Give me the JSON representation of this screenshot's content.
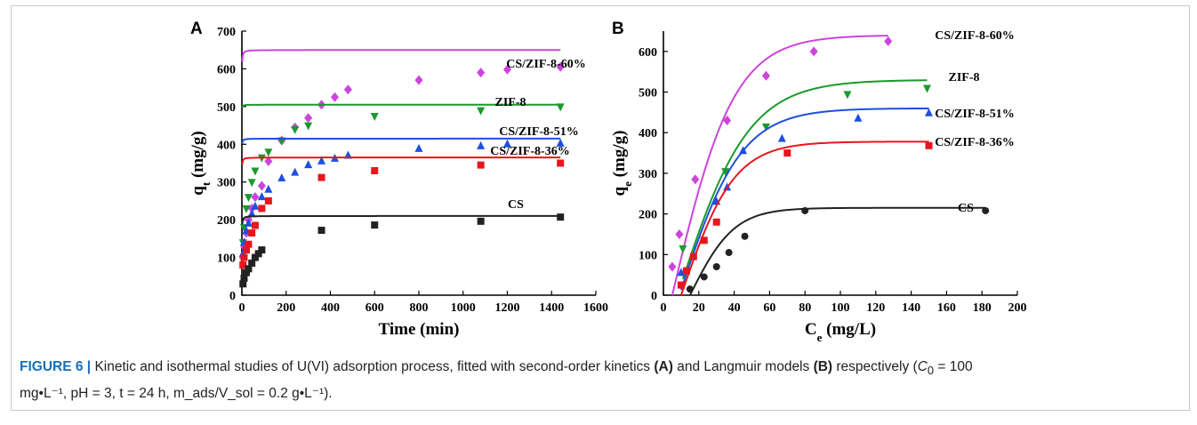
{
  "caption": {
    "label": "FIGURE 6 |",
    "line1_a": "Kinetic and isothermal studies of U(VI) adsorption process, fitted with second-order kinetics ",
    "ref_a": "(A)",
    "line1_b": " and Langmuir models ",
    "ref_b": "(B)",
    "line1_c": " respectively (",
    "c0_sym": "C",
    "c0_sub": "0",
    "line1_d": " = 100",
    "line2": "mg•L⁻¹, pH = 3, t = 24 h, m_ads/V_sol = 0.2 g•L⁻¹)."
  },
  "chart_data": [
    {
      "panel": "A",
      "type": "scatter",
      "xlabel": "Time (min)",
      "ylabel": "q_t (mg/g)",
      "xlim": [
        0,
        1600
      ],
      "ylim": [
        0,
        700
      ],
      "xticks": [
        0,
        200,
        400,
        600,
        800,
        1000,
        1200,
        1400,
        1600
      ],
      "yticks": [
        0,
        100,
        200,
        300,
        400,
        500,
        600,
        700
      ],
      "series": [
        {
          "name": "CS/ZIF-8-60%",
          "color": "#cc44dd",
          "marker": "diamond",
          "qe": 650,
          "k": 0.015,
          "x": [
            5,
            10,
            20,
            30,
            45,
            60,
            90,
            120,
            180,
            240,
            300,
            360,
            420,
            480,
            800,
            1080,
            1200,
            1440
          ],
          "y": [
            100,
            130,
            165,
            200,
            230,
            260,
            290,
            355,
            410,
            445,
            470,
            505,
            525,
            545,
            570,
            590,
            598,
            605
          ]
        },
        {
          "name": "ZIF-8",
          "color": "#1a9a2c",
          "marker": "triangle-down",
          "qe": 505,
          "k": 0.06,
          "x": [
            5,
            10,
            20,
            30,
            45,
            60,
            90,
            120,
            180,
            240,
            300,
            600,
            1080,
            1440
          ],
          "y": [
            140,
            180,
            230,
            260,
            300,
            330,
            365,
            380,
            410,
            440,
            450,
            475,
            490,
            500
          ]
        },
        {
          "name": "CS/ZIF-8-51%",
          "color": "#1d4fe0",
          "marker": "triangle-up",
          "qe": 415,
          "k": 0.035,
          "x": [
            5,
            10,
            20,
            30,
            45,
            60,
            90,
            120,
            180,
            240,
            300,
            360,
            420,
            480,
            800,
            1080,
            1200,
            1440
          ],
          "y": [
            110,
            140,
            170,
            190,
            215,
            235,
            260,
            280,
            310,
            325,
            345,
            355,
            362,
            370,
            388,
            395,
            400,
            402
          ]
        },
        {
          "name": "CS/ZIF-8-36%",
          "color": "#e8161c",
          "marker": "square",
          "qe": 365,
          "k": 0.025,
          "x": [
            5,
            10,
            20,
            30,
            45,
            60,
            90,
            120,
            360,
            600,
            1080,
            1440
          ],
          "y": [
            80,
            100,
            120,
            135,
            165,
            185,
            230,
            250,
            312,
            330,
            345,
            350
          ]
        },
        {
          "name": "CS",
          "color": "#222222",
          "marker": "square",
          "qe": 210,
          "k": 0.02,
          "x": [
            5,
            10,
            20,
            30,
            45,
            60,
            75,
            90,
            360,
            600,
            1080,
            1440
          ],
          "y": [
            30,
            45,
            60,
            70,
            85,
            100,
            110,
            120,
            172,
            186,
            196,
            207
          ]
        }
      ]
    },
    {
      "panel": "B",
      "type": "scatter",
      "xlabel": "C_e (mg/L)",
      "ylabel": "q_e (mg/g)",
      "xlim": [
        0,
        200
      ],
      "ylim": [
        0,
        650
      ],
      "xticks": [
        0,
        20,
        40,
        60,
        80,
        100,
        120,
        140,
        160,
        180,
        200
      ],
      "yticks": [
        0,
        100,
        200,
        300,
        400,
        500,
        600
      ],
      "series": [
        {
          "name": "CS/ZIF-8-60%",
          "color": "#cc44dd",
          "marker": "diamond",
          "qmax": 640,
          "c0": 5,
          "s": 35,
          "x": [
            5,
            9,
            18,
            36,
            58,
            85,
            127
          ],
          "y": [
            70,
            150,
            285,
            430,
            540,
            600,
            625
          ]
        },
        {
          "name": "ZIF-8",
          "color": "#1a9a2c",
          "marker": "triangle-down",
          "qmax": 530,
          "c0": 8,
          "s": 40,
          "x": [
            11,
            35,
            58,
            104,
            149
          ],
          "y": [
            115,
            305,
            415,
            495,
            510
          ]
        },
        {
          "name": "CS/ZIF-8-51%",
          "color": "#1d4fe0",
          "marker": "triangle-up",
          "qmax": 460,
          "c0": 9,
          "s": 35,
          "x": [
            10,
            30,
            36,
            45,
            67,
            110,
            150
          ],
          "y": [
            55,
            230,
            265,
            355,
            385,
            435,
            448
          ]
        },
        {
          "name": "CS/ZIF-8-36%",
          "color": "#e8161c",
          "marker": "square",
          "qmax": 378,
          "c0": 10,
          "s": 30,
          "x": [
            10,
            13,
            17,
            23,
            30,
            70,
            150
          ],
          "y": [
            25,
            60,
            95,
            135,
            180,
            350,
            368
          ]
        },
        {
          "name": "CS",
          "color": "#222222",
          "marker": "circle",
          "qmax": 215,
          "c0": 15,
          "s": 25,
          "x": [
            15,
            23,
            30,
            37,
            46,
            80,
            182
          ],
          "y": [
            15,
            45,
            70,
            105,
            145,
            208,
            208
          ]
        }
      ]
    }
  ]
}
